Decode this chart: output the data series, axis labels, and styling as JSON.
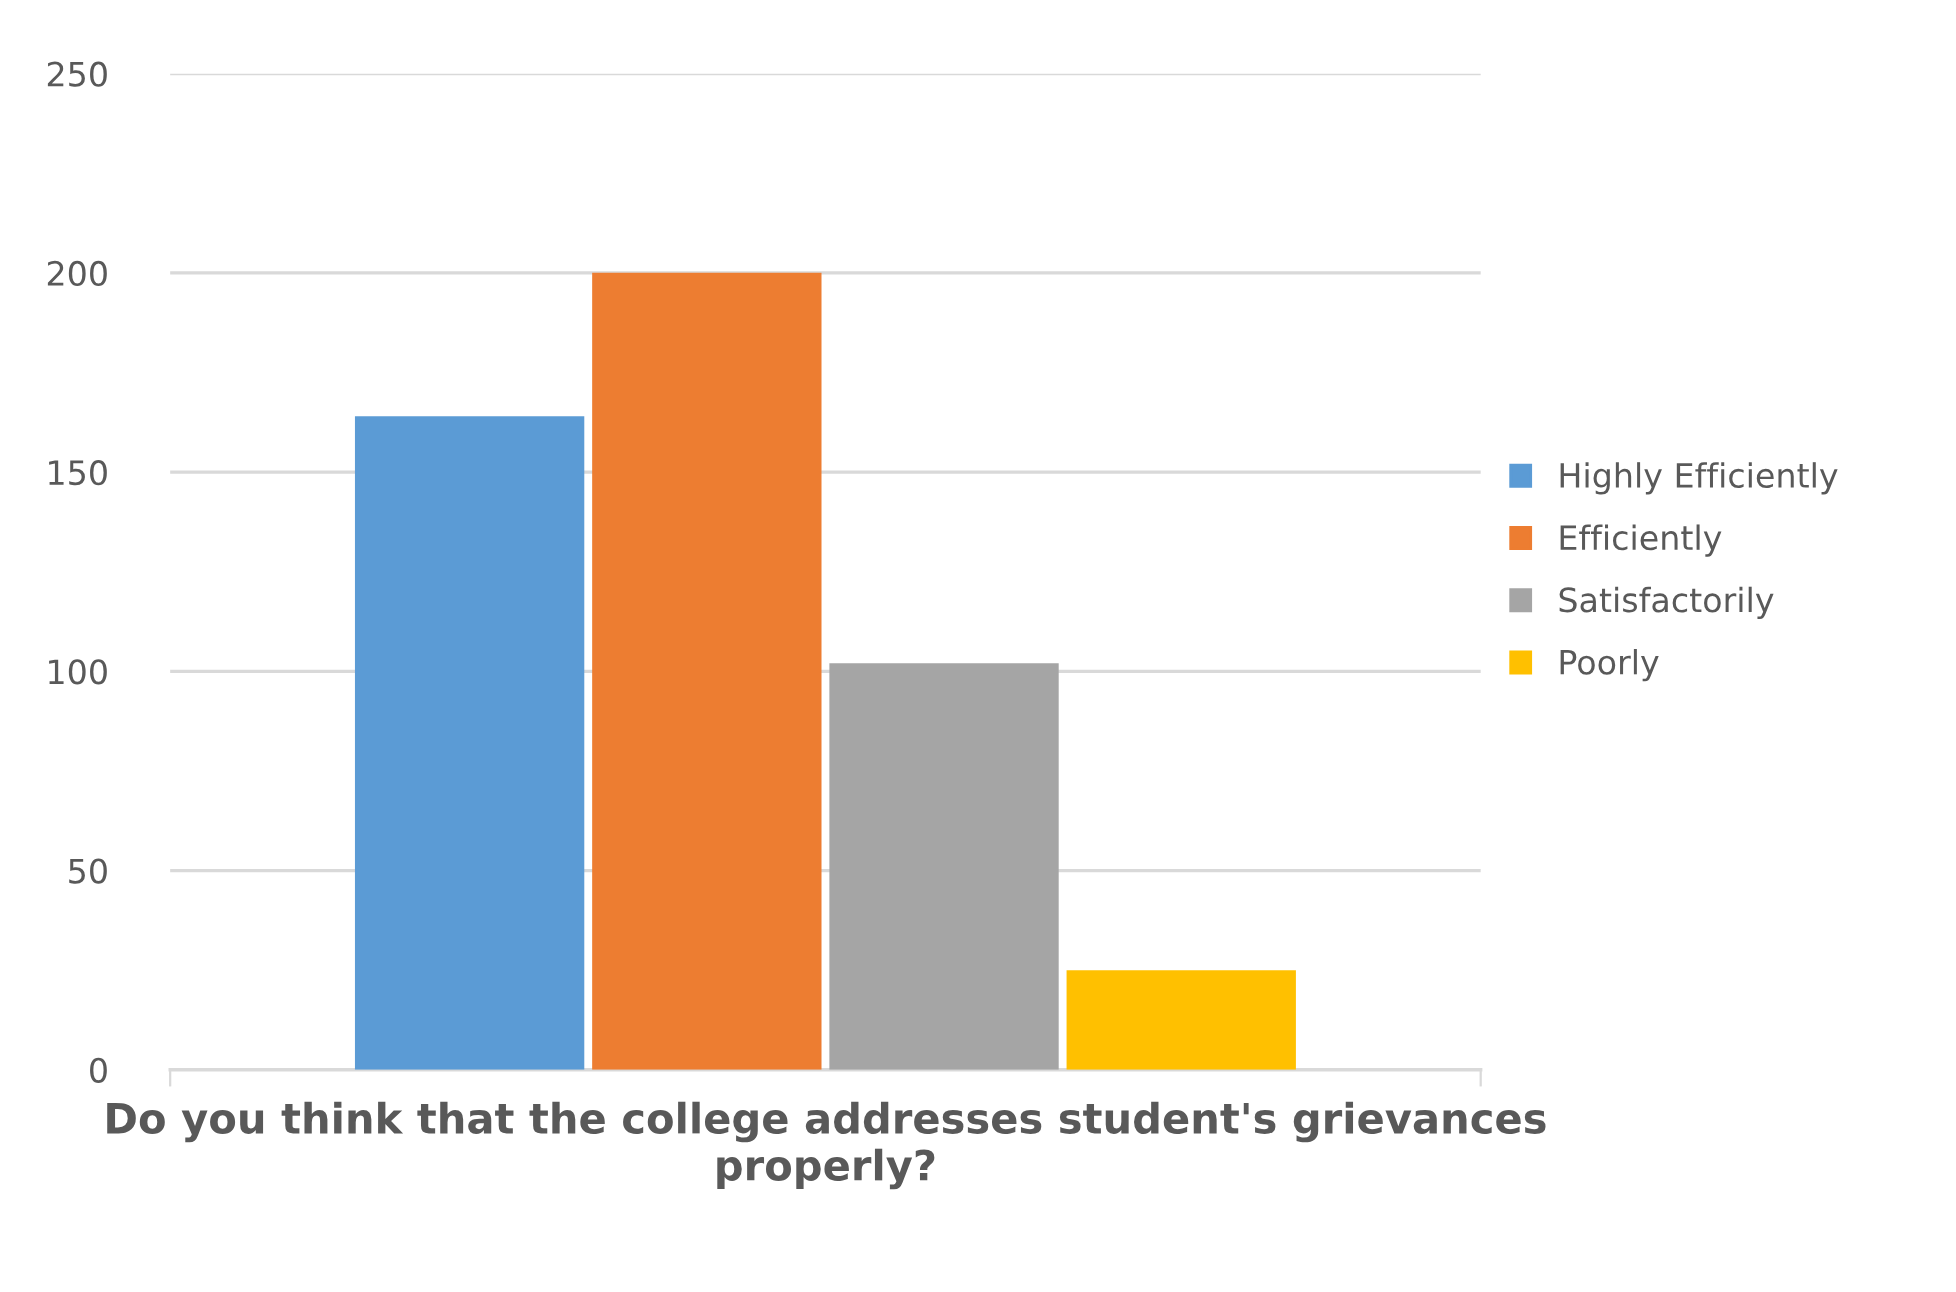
{
  "chart_data": {
    "type": "bar",
    "xlabel": "Do you think that the college addresses student's grievances properly?",
    "categories": [
      null
    ],
    "series": [
      {
        "name": "Highly Efficiently",
        "color": "#5b9bd5",
        "values": [
          164
        ]
      },
      {
        "name": "Efficiently",
        "color": "#ed7d31",
        "values": [
          200
        ]
      },
      {
        "name": "Satisfactorily",
        "color": "#a5a5a5",
        "values": [
          102
        ]
      },
      {
        "name": "Poorly",
        "color": "#ffc000",
        "values": [
          25
        ]
      }
    ],
    "ylim": [
      0,
      250
    ],
    "yticks": [
      0,
      50,
      100,
      150,
      200,
      250
    ],
    "grid": "y",
    "legend": "right"
  }
}
